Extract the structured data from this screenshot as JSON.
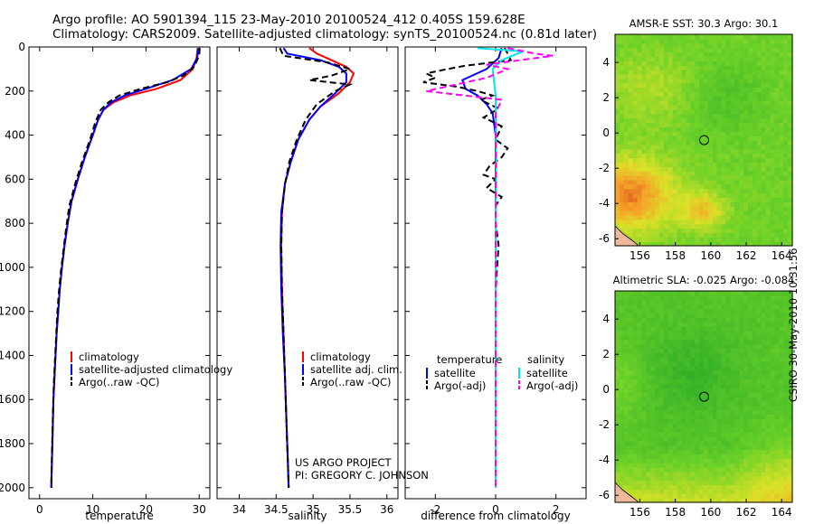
{
  "header": {
    "line1": "Argo profile: AO 5901394_115 23-May-2010 20100524_412 0.405S 159.628E",
    "line2": "Climatology: CARS2009. Satellite-adjusted climatology: synTS_20100524.nc (0.81d later)"
  },
  "footer": {
    "project": "US ARGO PROJECT",
    "pi": "PI: GREGORY C. JOHNSON",
    "stamp": "CSIRO 30-May-2010 10:31:56"
  },
  "colors": {
    "climatology": "#ff0000",
    "satellite": "#0000ff",
    "argo": "#000000",
    "sal_satellite": "#00e5ee",
    "sal_argo": "#ff00ff"
  },
  "chart_data": [
    {
      "id": "temperature",
      "type": "line",
      "xlabel": "temperature",
      "ylabel": "",
      "xlim": [
        -2,
        32
      ],
      "ylim": [
        2050,
        0
      ],
      "yreversed": true,
      "xticks": [
        0,
        10,
        20,
        30
      ],
      "yticks": [
        0,
        200,
        400,
        600,
        800,
        1000,
        1200,
        1400,
        1600,
        1800,
        2000
      ],
      "legend": {
        "position": "lower-right",
        "entries": [
          "climatology",
          "satellite-adjusted climatology",
          "Argo(..raw -QC)"
        ]
      },
      "series": [
        {
          "name": "climatology",
          "style": "solid",
          "colorKey": "climatology",
          "points": [
            [
              29.7,
              5
            ],
            [
              29.5,
              50
            ],
            [
              28.8,
              100
            ],
            [
              26.5,
              150
            ],
            [
              22,
              190
            ],
            [
              17,
              220
            ],
            [
              14,
              250
            ],
            [
              12,
              285
            ],
            [
              11,
              330
            ],
            [
              10,
              400
            ],
            [
              8.5,
              500
            ],
            [
              7.2,
              600
            ],
            [
              6,
              700
            ],
            [
              5.3,
              800
            ],
            [
              4.7,
              900
            ],
            [
              4.2,
              1000
            ],
            [
              3.8,
              1100
            ],
            [
              3.5,
              1200
            ],
            [
              3.2,
              1300
            ],
            [
              3,
              1400
            ],
            [
              2.8,
              1500
            ],
            [
              2.6,
              1600
            ],
            [
              2.5,
              1700
            ],
            [
              2.4,
              1800
            ],
            [
              2.3,
              1900
            ],
            [
              2.2,
              2000
            ]
          ]
        },
        {
          "name": "satellite-adjusted climatology",
          "style": "solid",
          "colorKey": "satellite",
          "points": [
            [
              29.9,
              5
            ],
            [
              29.6,
              50
            ],
            [
              28.5,
              100
            ],
            [
              25,
              150
            ],
            [
              20,
              190
            ],
            [
              16,
              220
            ],
            [
              13.5,
              250
            ],
            [
              12,
              285
            ],
            [
              11,
              330
            ],
            [
              10,
              400
            ],
            [
              8.5,
              500
            ],
            [
              7.2,
              600
            ],
            [
              6,
              700
            ],
            [
              5.3,
              800
            ],
            [
              4.7,
              900
            ],
            [
              4.2,
              1000
            ],
            [
              3.8,
              1100
            ],
            [
              3.5,
              1200
            ],
            [
              3.2,
              1300
            ],
            [
              3,
              1400
            ],
            [
              2.8,
              1500
            ],
            [
              2.6,
              1600
            ],
            [
              2.5,
              1700
            ],
            [
              2.4,
              1800
            ],
            [
              2.3,
              1900
            ],
            [
              2.2,
              2000
            ]
          ]
        },
        {
          "name": "Argo(..raw -QC)",
          "style": "dashed",
          "colorKey": "argo",
          "points": [
            [
              30.1,
              5
            ],
            [
              30,
              40
            ],
            [
              29,
              90
            ],
            [
              27,
              130
            ],
            [
              24,
              160
            ],
            [
              19,
              190
            ],
            [
              15,
              220
            ],
            [
              13,
              250
            ],
            [
              11.5,
              285
            ],
            [
              10.5,
              340
            ],
            [
              9.5,
              420
            ],
            [
              8,
              520
            ],
            [
              6.7,
              620
            ],
            [
              5.6,
              720
            ],
            [
              5,
              820
            ],
            [
              4.5,
              920
            ],
            [
              4,
              1020
            ],
            [
              3.6,
              1120
            ],
            [
              3.3,
              1220
            ],
            [
              3.1,
              1320
            ],
            [
              2.9,
              1420
            ],
            [
              2.7,
              1520
            ],
            [
              2.55,
              1620
            ],
            [
              2.45,
              1720
            ],
            [
              2.35,
              1820
            ],
            [
              2.25,
              1920
            ],
            [
              2.2,
              2000
            ]
          ]
        }
      ]
    },
    {
      "id": "salinity",
      "type": "line",
      "xlabel": "salinity",
      "ylabel": "",
      "xlim": [
        33.7,
        36.15
      ],
      "ylim": [
        2050,
        0
      ],
      "yreversed": true,
      "xticks": [
        34,
        34.5,
        35,
        35.5,
        36
      ],
      "legend": {
        "position": "lower-right",
        "entries": [
          "climatology",
          "satellite adj. clim.",
          "Argo(..raw -QC)"
        ]
      },
      "series": [
        {
          "name": "climatology",
          "style": "solid",
          "colorKey": "climatology",
          "points": [
            [
              34.95,
              5
            ],
            [
              35.05,
              30
            ],
            [
              35.25,
              60
            ],
            [
              35.45,
              90
            ],
            [
              35.55,
              120
            ],
            [
              35.5,
              160
            ],
            [
              35.35,
              210
            ],
            [
              35.1,
              270
            ],
            [
              34.95,
              330
            ],
            [
              34.8,
              420
            ],
            [
              34.7,
              520
            ],
            [
              34.62,
              620
            ],
            [
              34.58,
              750
            ],
            [
              34.57,
              900
            ],
            [
              34.58,
              1100
            ],
            [
              34.6,
              1300
            ],
            [
              34.62,
              1500
            ],
            [
              34.64,
              1700
            ],
            [
              34.66,
              1900
            ],
            [
              34.67,
              2000
            ]
          ]
        },
        {
          "name": "satellite adj. clim.",
          "style": "solid",
          "colorKey": "satellite",
          "points": [
            [
              34.6,
              5
            ],
            [
              34.65,
              30
            ],
            [
              35.1,
              60
            ],
            [
              35.35,
              90
            ],
            [
              35.45,
              120
            ],
            [
              35.45,
              160
            ],
            [
              35.3,
              210
            ],
            [
              35.1,
              270
            ],
            [
              34.95,
              330
            ],
            [
              34.8,
              420
            ],
            [
              34.7,
              520
            ],
            [
              34.62,
              620
            ],
            [
              34.57,
              750
            ],
            [
              34.56,
              900
            ],
            [
              34.57,
              1100
            ],
            [
              34.59,
              1300
            ],
            [
              34.62,
              1500
            ],
            [
              34.64,
              1700
            ],
            [
              34.66,
              1900
            ],
            [
              34.67,
              2000
            ]
          ]
        },
        {
          "name": "Argo(..raw -QC)",
          "style": "dashed",
          "colorKey": "argo",
          "points": [
            [
              34.55,
              5
            ],
            [
              34.6,
              40
            ],
            [
              35.2,
              70
            ],
            [
              35.5,
              100
            ],
            [
              35.25,
              130
            ],
            [
              34.95,
              150
            ],
            [
              35.5,
              170
            ],
            [
              35.3,
              200
            ],
            [
              35.05,
              260
            ],
            [
              34.9,
              330
            ],
            [
              34.78,
              420
            ],
            [
              34.68,
              520
            ],
            [
              34.62,
              620
            ],
            [
              34.58,
              750
            ],
            [
              34.57,
              900
            ],
            [
              34.58,
              1100
            ],
            [
              34.6,
              1300
            ],
            [
              34.62,
              1500
            ],
            [
              34.64,
              1700
            ],
            [
              34.66,
              1900
            ],
            [
              34.67,
              2000
            ]
          ]
        }
      ]
    },
    {
      "id": "difference",
      "type": "line",
      "xlabel": "difference from climatology",
      "ylabel": "",
      "xlim": [
        -3,
        3
      ],
      "ylim": [
        2050,
        0
      ],
      "yreversed": true,
      "xticks": [
        -2,
        0,
        2
      ],
      "legend": {
        "position": "lower-right",
        "titles": [
          "temperature",
          "salinity"
        ],
        "entries": [
          "satellite",
          "Argo(-adj)",
          "satellite",
          "Argo(-adj)"
        ]
      },
      "series": [
        {
          "name": "temperature satellite",
          "style": "solid",
          "colorKey": "satellite",
          "points": [
            [
              0.2,
              5
            ],
            [
              0.1,
              50
            ],
            [
              -0.3,
              100
            ],
            [
              -1.1,
              150
            ],
            [
              -1.0,
              190
            ],
            [
              -0.6,
              220
            ],
            [
              -0.3,
              260
            ],
            [
              -0.1,
              300
            ],
            [
              0,
              400
            ],
            [
              0,
              600
            ],
            [
              0,
              1000
            ],
            [
              0,
              1500
            ],
            [
              0,
              2000
            ]
          ]
        },
        {
          "name": "temperature Argo(-adj)",
          "style": "dashed",
          "colorKey": "argo",
          "points": [
            [
              0.3,
              5
            ],
            [
              0.4,
              30
            ],
            [
              0.5,
              60
            ],
            [
              -1,
              85
            ],
            [
              -1.6,
              100
            ],
            [
              -2.3,
              120
            ],
            [
              -2,
              140
            ],
            [
              -2.4,
              160
            ],
            [
              -1.3,
              180
            ],
            [
              -0.6,
              200
            ],
            [
              -0.1,
              220
            ],
            [
              -0.5,
              240
            ],
            [
              0.1,
              280
            ],
            [
              -0.4,
              320
            ],
            [
              0.2,
              360
            ],
            [
              0,
              420
            ],
            [
              0.4,
              460
            ],
            [
              0.2,
              500
            ],
            [
              -0.2,
              540
            ],
            [
              -0.4,
              580
            ],
            [
              0,
              600
            ],
            [
              -0.3,
              640
            ],
            [
              0.2,
              680
            ],
            [
              0,
              720
            ],
            [
              0,
              800
            ],
            [
              0.1,
              900
            ],
            [
              0,
              1100
            ],
            [
              0,
              1400
            ],
            [
              0,
              1700
            ],
            [
              0,
              2000
            ]
          ]
        },
        {
          "name": "salinity satellite",
          "style": "solid",
          "colorKey": "sal_satellite",
          "points": [
            [
              -0.6,
              5
            ],
            [
              0.9,
              20
            ],
            [
              0.2,
              60
            ],
            [
              -0.1,
              100
            ],
            [
              -0.05,
              160
            ],
            [
              0,
              220
            ],
            [
              0,
              300
            ],
            [
              0.02,
              500
            ],
            [
              0,
              800
            ],
            [
              0,
              1200
            ],
            [
              0,
              1600
            ],
            [
              0,
              2000
            ]
          ]
        },
        {
          "name": "salinity Argo(-adj)",
          "style": "dashed",
          "colorKey": "sal_argo",
          "points": [
            [
              0.4,
              5
            ],
            [
              1.3,
              30
            ],
            [
              1.9,
              40
            ],
            [
              -0.3,
              80
            ],
            [
              0.4,
              100
            ],
            [
              -0.3,
              140
            ],
            [
              -2.3,
              200
            ],
            [
              0.2,
              240
            ],
            [
              0,
              300
            ],
            [
              0,
              500
            ],
            [
              0,
              800
            ],
            [
              0,
              1200
            ],
            [
              0,
              1600
            ],
            [
              0,
              2000
            ]
          ]
        }
      ]
    },
    {
      "id": "sst-map",
      "type": "heatmap",
      "title": "AMSR-E SST: 30.3 Argo: 30.1",
      "xlim": [
        154.6,
        164.6
      ],
      "ylim": [
        -6.4,
        5.6
      ],
      "xticks": [
        156,
        158,
        160,
        162,
        164
      ],
      "yticks": [
        -6,
        -4,
        -2,
        0,
        2,
        4
      ],
      "marker": {
        "x": 159.628,
        "y": -0.405
      },
      "field": "sst"
    },
    {
      "id": "sla-map",
      "type": "heatmap",
      "title": "Altimetric SLA: -0.025 Argo: -0.084",
      "xlim": [
        154.6,
        164.6
      ],
      "ylim": [
        -6.4,
        5.6
      ],
      "xticks": [
        156,
        158,
        160,
        162,
        164
      ],
      "yticks": [
        -6,
        -4,
        -2,
        0,
        2,
        4
      ],
      "marker": {
        "x": 159.628,
        "y": -0.405
      },
      "field": "sla"
    }
  ]
}
